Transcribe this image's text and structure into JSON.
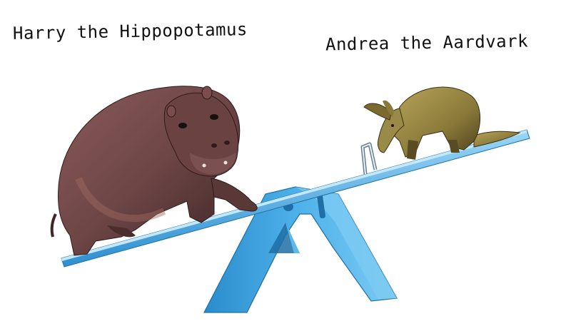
{
  "captions": {
    "left": "Harry the Hippopotamus",
    "right": "Andrea the Aardvark"
  },
  "colors": {
    "seesaw": "#3ea6e0",
    "seesaw_light": "#8fd0f4",
    "seesaw_dark": "#1f7fbf",
    "hippo": "#6e4646",
    "hippo_dark": "#3e2626",
    "aardvark": "#8a7a3a",
    "aardvark_dark": "#4a3f1c"
  }
}
